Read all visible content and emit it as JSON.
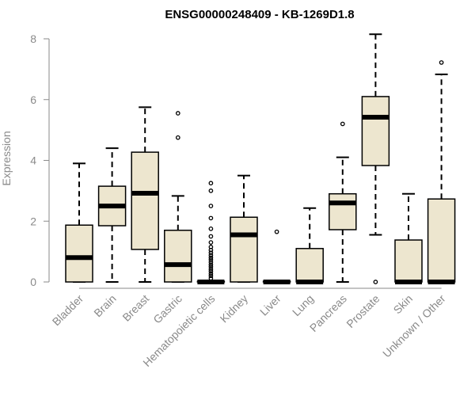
{
  "chart_data": {
    "type": "boxplot",
    "title": "ENSG00000248409 - KB-1269D1.8",
    "xlabel": "",
    "ylabel": "Expression",
    "ylim": [
      0,
      8.2
    ],
    "yticks": [
      0,
      2,
      4,
      6,
      8
    ],
    "grid": false,
    "box_fill": "#ede6cf",
    "categories": [
      "Bladder",
      "Brain",
      "Breast",
      "Gastric",
      "Hematopoietic cells",
      "Kidney",
      "Liver",
      "Lung",
      "Pancreas",
      "Prostate",
      "Skin",
      "Unknown / Other"
    ],
    "boxes": [
      {
        "name": "Bladder",
        "whisker_low": 0,
        "q1": 0,
        "median": 0.8,
        "q3": 1.87,
        "whisker_high": 3.9,
        "outliers": []
      },
      {
        "name": "Brain",
        "whisker_low": 0,
        "q1": 1.85,
        "median": 2.5,
        "q3": 3.15,
        "whisker_high": 4.4,
        "outliers": []
      },
      {
        "name": "Breast",
        "whisker_low": 0,
        "q1": 1.07,
        "median": 2.92,
        "q3": 4.27,
        "whisker_high": 5.75,
        "outliers": []
      },
      {
        "name": "Gastric",
        "whisker_low": 0,
        "q1": 0,
        "median": 0.57,
        "q3": 1.7,
        "whisker_high": 2.83,
        "outliers": [
          4.75,
          5.55
        ]
      },
      {
        "name": "Hematopoietic cells",
        "whisker_low": 0,
        "q1": 0,
        "median": 0,
        "q3": 0.02,
        "whisker_high": 0.04,
        "outliers": [
          0.12,
          0.2,
          0.27,
          0.35,
          0.42,
          0.5,
          0.57,
          0.65,
          0.73,
          0.8,
          0.88,
          0.96,
          1.05,
          1.15,
          1.3,
          1.5,
          1.75,
          2.1,
          2.5,
          3.0,
          3.25
        ]
      },
      {
        "name": "Kidney",
        "whisker_low": 0,
        "q1": 0,
        "median": 1.55,
        "q3": 2.13,
        "whisker_high": 3.5,
        "outliers": []
      },
      {
        "name": "Liver",
        "whisker_low": 0,
        "q1": 0,
        "median": 0,
        "q3": 0.02,
        "whisker_high": 0.03,
        "outliers": [
          1.65
        ]
      },
      {
        "name": "Lung",
        "whisker_low": 0,
        "q1": 0,
        "median": 0,
        "q3": 1.1,
        "whisker_high": 2.43,
        "outliers": []
      },
      {
        "name": "Pancreas",
        "whisker_low": 0,
        "q1": 1.72,
        "median": 2.6,
        "q3": 2.9,
        "whisker_high": 4.1,
        "outliers": [
          5.2
        ]
      },
      {
        "name": "Prostate",
        "whisker_low": 1.55,
        "q1": 3.83,
        "median": 5.42,
        "q3": 6.1,
        "whisker_high": 8.15,
        "outliers": [
          0
        ]
      },
      {
        "name": "Skin",
        "whisker_low": 0,
        "q1": 0,
        "median": 0,
        "q3": 1.38,
        "whisker_high": 2.9,
        "outliers": []
      },
      {
        "name": "Unknown / Other",
        "whisker_low": 0,
        "q1": 0,
        "median": 0,
        "q3": 2.73,
        "whisker_high": 6.83,
        "outliers": [
          7.22
        ]
      }
    ]
  }
}
